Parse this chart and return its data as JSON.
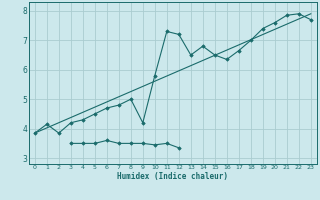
{
  "xlabel": "Humidex (Indice chaleur)",
  "bg_color": "#cce8ec",
  "line_color": "#1a6b6b",
  "grid_color": "#aaccd0",
  "xlim": [
    -0.5,
    23.5
  ],
  "ylim": [
    2.8,
    8.3
  ],
  "xticks": [
    0,
    1,
    2,
    3,
    4,
    5,
    6,
    7,
    8,
    9,
    10,
    11,
    12,
    13,
    14,
    15,
    16,
    17,
    18,
    19,
    20,
    21,
    22,
    23
  ],
  "yticks": [
    3,
    4,
    5,
    6,
    7,
    8
  ],
  "series1_x": [
    0,
    1,
    2,
    3,
    4,
    5,
    6,
    7,
    8,
    9,
    10,
    11,
    12,
    13,
    14,
    15,
    16,
    17,
    18,
    19,
    20,
    21,
    22,
    23
  ],
  "series1_y": [
    3.85,
    4.15,
    3.85,
    4.2,
    4.3,
    4.5,
    4.7,
    4.8,
    5.0,
    4.2,
    5.8,
    7.3,
    7.2,
    6.5,
    6.8,
    6.5,
    6.35,
    6.65,
    7.0,
    7.4,
    7.6,
    7.85,
    7.9,
    7.7
  ],
  "series2_x": [
    3,
    4,
    5,
    6,
    7,
    8,
    9,
    10,
    11,
    12
  ],
  "series2_y": [
    3.5,
    3.5,
    3.5,
    3.6,
    3.5,
    3.5,
    3.5,
    3.45,
    3.5,
    3.35
  ],
  "series3_x": [
    0,
    23
  ],
  "series3_y": [
    3.85,
    7.9
  ]
}
